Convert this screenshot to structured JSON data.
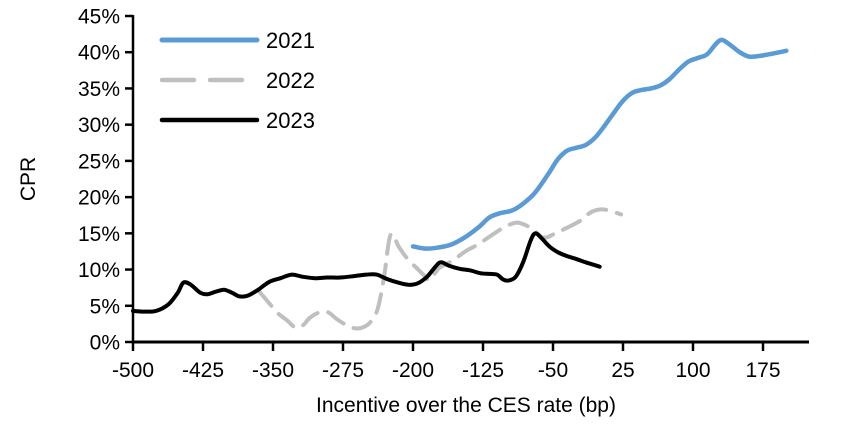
{
  "chart_data": {
    "type": "line",
    "title": "",
    "xlabel": "Incentive over the CES rate (bp)",
    "ylabel": "CPR",
    "xlim": [
      -500,
      220
    ],
    "ylim": [
      0,
      45
    ],
    "x_ticks": [
      -500,
      -425,
      -350,
      -275,
      -200,
      -125,
      -50,
      25,
      100,
      175
    ],
    "y_ticks": [
      0,
      5,
      10,
      15,
      20,
      25,
      30,
      35,
      40,
      45
    ],
    "y_tick_suffix": "%",
    "grid": false,
    "legend_position": "top-left-inside",
    "axis_color": "#000000",
    "background_color": "#FFFFFF",
    "series": [
      {
        "name": "2021",
        "color": "#5B9BD5",
        "style": "solid",
        "width": 4.5,
        "points": [
          [
            -200,
            13.2
          ],
          [
            -188,
            12.9
          ],
          [
            -175,
            13.0
          ],
          [
            -160,
            13.4
          ],
          [
            -145,
            14.4
          ],
          [
            -130,
            15.8
          ],
          [
            -118,
            17.2
          ],
          [
            -106,
            17.8
          ],
          [
            -95,
            18.1
          ],
          [
            -85,
            18.8
          ],
          [
            -70,
            20.5
          ],
          [
            -55,
            23.2
          ],
          [
            -45,
            25.2
          ],
          [
            -35,
            26.4
          ],
          [
            -25,
            26.8
          ],
          [
            -15,
            27.2
          ],
          [
            -5,
            28.2
          ],
          [
            5,
            29.8
          ],
          [
            15,
            31.6
          ],
          [
            25,
            33.3
          ],
          [
            35,
            34.4
          ],
          [
            45,
            34.8
          ],
          [
            55,
            35.0
          ],
          [
            65,
            35.4
          ],
          [
            75,
            36.3
          ],
          [
            85,
            37.6
          ],
          [
            95,
            38.7
          ],
          [
            105,
            39.2
          ],
          [
            115,
            39.7
          ],
          [
            125,
            41.2
          ],
          [
            131,
            41.7
          ],
          [
            140,
            41.0
          ],
          [
            150,
            40.0
          ],
          [
            160,
            39.4
          ],
          [
            172,
            39.5
          ],
          [
            185,
            39.8
          ],
          [
            200,
            40.2
          ]
        ]
      },
      {
        "name": "2022",
        "color": "#BFBFBF",
        "style": "dashed",
        "width": 4,
        "points": [
          [
            -365,
            7.0
          ],
          [
            -355,
            5.5
          ],
          [
            -345,
            4.0
          ],
          [
            -335,
            3.0
          ],
          [
            -326,
            2.0
          ],
          [
            -318,
            2.3
          ],
          [
            -310,
            3.4
          ],
          [
            -300,
            4.1
          ],
          [
            -291,
            4.1
          ],
          [
            -281,
            3.1
          ],
          [
            -272,
            2.4
          ],
          [
            -263,
            1.9
          ],
          [
            -254,
            2.0
          ],
          [
            -246,
            2.7
          ],
          [
            -238,
            4.5
          ],
          [
            -231,
            9.0
          ],
          [
            -224,
            14.8
          ],
          [
            -215,
            13.1
          ],
          [
            -206,
            11.5
          ],
          [
            -196,
            10.2
          ],
          [
            -189,
            9.3
          ],
          [
            -182,
            8.6
          ],
          [
            -172,
            10.2
          ],
          [
            -158,
            11.2
          ],
          [
            -144,
            12.5
          ],
          [
            -130,
            13.5
          ],
          [
            -115,
            14.8
          ],
          [
            -103,
            15.8
          ],
          [
            -92,
            16.4
          ],
          [
            -85,
            16.4
          ],
          [
            -73,
            15.7
          ],
          [
            -60,
            14.4
          ],
          [
            -46,
            15.1
          ],
          [
            -33,
            15.9
          ],
          [
            -20,
            16.8
          ],
          [
            -12,
            17.7
          ],
          [
            -4,
            18.2
          ],
          [
            4,
            18.3
          ],
          [
            14,
            18.0
          ],
          [
            23,
            17.6
          ]
        ]
      },
      {
        "name": "2023",
        "color": "#000000",
        "style": "solid",
        "width": 4,
        "points": [
          [
            -500,
            4.3
          ],
          [
            -488,
            4.2
          ],
          [
            -475,
            4.3
          ],
          [
            -462,
            5.2
          ],
          [
            -452,
            6.8
          ],
          [
            -446,
            8.2
          ],
          [
            -438,
            7.9
          ],
          [
            -428,
            6.8
          ],
          [
            -420,
            6.6
          ],
          [
            -410,
            7.0
          ],
          [
            -402,
            7.2
          ],
          [
            -394,
            6.8
          ],
          [
            -386,
            6.3
          ],
          [
            -377,
            6.4
          ],
          [
            -366,
            7.2
          ],
          [
            -354,
            8.3
          ],
          [
            -342,
            8.8
          ],
          [
            -330,
            9.3
          ],
          [
            -318,
            9.0
          ],
          [
            -305,
            8.8
          ],
          [
            -292,
            8.9
          ],
          [
            -278,
            8.9
          ],
          [
            -263,
            9.1
          ],
          [
            -250,
            9.3
          ],
          [
            -239,
            9.3
          ],
          [
            -228,
            8.7
          ],
          [
            -216,
            8.2
          ],
          [
            -205,
            7.9
          ],
          [
            -195,
            8.1
          ],
          [
            -185,
            9.0
          ],
          [
            -176,
            10.4
          ],
          [
            -170,
            11.0
          ],
          [
            -161,
            10.5
          ],
          [
            -150,
            10.1
          ],
          [
            -139,
            9.9
          ],
          [
            -128,
            9.5
          ],
          [
            -118,
            9.4
          ],
          [
            -110,
            9.3
          ],
          [
            -103,
            8.6
          ],
          [
            -97,
            8.5
          ],
          [
            -90,
            9.0
          ],
          [
            -82,
            11.0
          ],
          [
            -74,
            14.0
          ],
          [
            -69,
            15.0
          ],
          [
            -62,
            14.3
          ],
          [
            -54,
            13.2
          ],
          [
            -45,
            12.4
          ],
          [
            -36,
            11.9
          ],
          [
            -26,
            11.5
          ],
          [
            -15,
            11.0
          ],
          [
            -5,
            10.6
          ],
          [
            0,
            10.4
          ]
        ]
      }
    ]
  }
}
